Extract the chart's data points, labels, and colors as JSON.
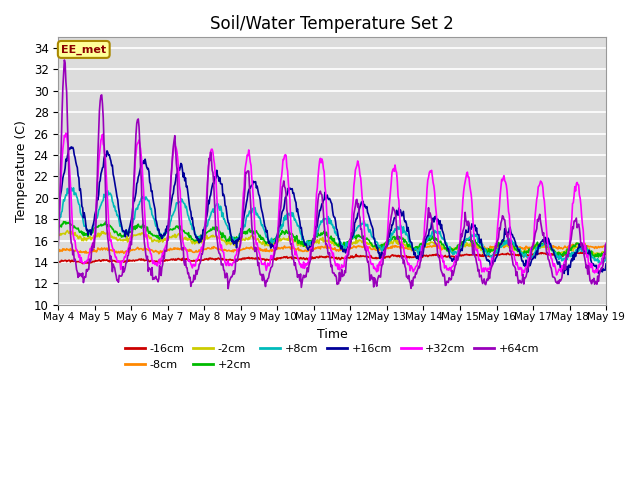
{
  "title": "Soil/Water Temperature Set 2",
  "xlabel": "Time",
  "ylabel": "Temperature (C)",
  "ylim": [
    10,
    35
  ],
  "yticks": [
    10,
    12,
    14,
    16,
    18,
    20,
    22,
    24,
    26,
    28,
    30,
    32,
    34
  ],
  "background_color": "#dcdcdc",
  "legend_label": "EE_met",
  "series_labels": [
    "-16cm",
    "-8cm",
    "-2cm",
    "+2cm",
    "+8cm",
    "+16cm",
    "+32cm",
    "+64cm"
  ],
  "series_colors": [
    "#cc0000",
    "#ff8800",
    "#cccc00",
    "#00bb00",
    "#00bbbb",
    "#000099",
    "#ff00ff",
    "#9900bb"
  ],
  "x_start": 4.0,
  "x_end": 19.0,
  "xtick_positions": [
    4,
    5,
    6,
    7,
    8,
    9,
    10,
    11,
    12,
    13,
    14,
    15,
    16,
    17,
    18,
    19
  ],
  "xtick_labels": [
    "May 4",
    "May 5",
    "May 6",
    "May 7",
    "May 8",
    "May 9",
    "May 10",
    "May 11",
    "May 12",
    "May 13",
    "May 14",
    "May 15",
    "May 16",
    "May 17",
    "May 18",
    "May 19"
  ]
}
